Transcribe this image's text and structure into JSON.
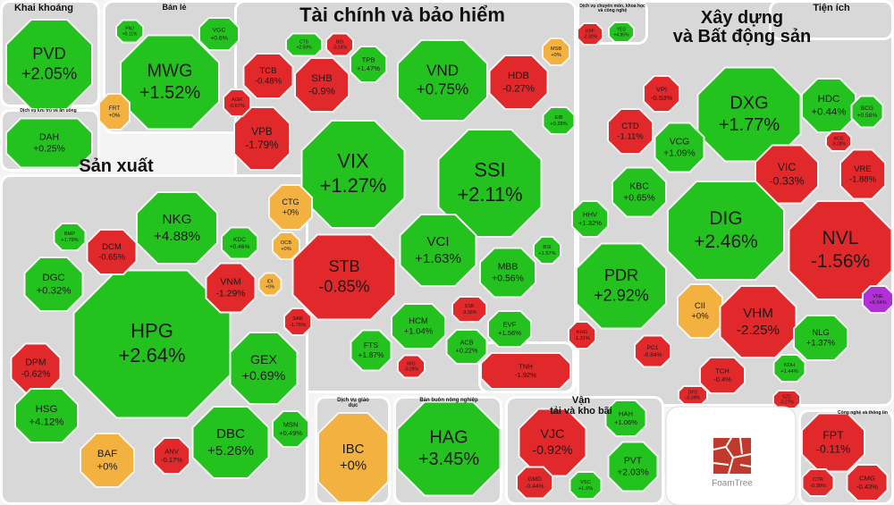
{
  "chart_data": {
    "type": "treemap",
    "groups": [
      {
        "name": "Khai khoáng",
        "categories": [
          "PVD"
        ],
        "values": [
          2.05
        ],
        "value_labels": [
          "+2.05%"
        ]
      },
      {
        "name": "Bán lẻ",
        "categories": [
          "MWG",
          "VGC",
          "FRT",
          "PNJ"
        ],
        "values": [
          1.52,
          0.6,
          0,
          0.11
        ],
        "value_labels": [
          "+1.52%",
          "+0.6%",
          "+0%",
          "+0.11%"
        ]
      },
      {
        "name": "Dịch vụ lưu trú và ăn uống",
        "categories": [
          "DAH"
        ],
        "values": [
          0.25
        ],
        "value_labels": [
          "+0.25%"
        ]
      },
      {
        "name": "Xây dựng\nvà Bất động sản",
        "categories": [
          "VPI",
          "DXG",
          "HDC",
          "BCG",
          "CTD",
          "VCG",
          "ACG",
          "VIC",
          "VRE",
          "KBC",
          "HHV",
          "DIG",
          "NVL",
          "PDR",
          "CII",
          "VHM",
          "NLG",
          "VNE",
          "KHG",
          "PC1",
          "TCH",
          "KDH",
          "DPG",
          "SZC"
        ],
        "values": [
          -0.53,
          1.77,
          0.44,
          0.58,
          -1.11,
          1.09,
          -3.28,
          -0.33,
          -1.88,
          0.65,
          1.32,
          2.46,
          -1.56,
          2.92,
          0,
          -2.25,
          1.37,
          6.94,
          -1.31,
          -0.84,
          -0.4,
          1.44,
          -0.39,
          -0.27
        ],
        "value_labels": [
          "-0.53%",
          "+1.77%",
          "+0.44%",
          "+0.58%",
          "-1.11%",
          "+1.09%",
          "-3.28%",
          "-0.33%",
          "-1.88%",
          "+0.65%",
          "+1.32%",
          "+2.46%",
          "-1.56%",
          "+2.92%",
          "+0%",
          "-2.25%",
          "+1.37%",
          "+6.94%",
          "-1.31%",
          "-0.84%",
          "-0.4%",
          "+1.44%",
          "-0.39%",
          "-0.27%"
        ]
      },
      {
        "name": "Dịch vụ chuyên môn, khoa học và công nghệ",
        "categories": [
          "KPF",
          "YEG"
        ],
        "values": [
          -2.32,
          4.85
        ],
        "value_labels": [
          "-2.32%",
          "+4.85%"
        ]
      },
      {
        "name": "Tiện ích",
        "categories": [],
        "values": [],
        "value_labels": []
      },
      {
        "name": "Tài chính và bảo hiểm",
        "categories": [
          "TCB",
          "SHB",
          "CTS",
          "BID",
          "TPB",
          "VND",
          "HDB",
          "MSB",
          "VPB",
          "AGR",
          "VIX",
          "SSI",
          "EIB",
          "CTG",
          "OCB",
          "STB",
          "VCI",
          "BSI",
          "MBB",
          "SSB",
          "HCM",
          "EVF",
          "ACB",
          "FTS",
          "MIG"
        ],
        "values": [
          -0.48,
          -0.9,
          2.59,
          -0.24,
          1.47,
          0.75,
          -0.27,
          0,
          -1.79,
          -0.67,
          1.27,
          2.11,
          0.28,
          0,
          0,
          -0.85,
          1.63,
          1.57,
          0.56,
          -3.36,
          1.04,
          1.56,
          0.22,
          1.87,
          -0.28
        ],
        "value_labels": [
          "-0.48%",
          "-0.9%",
          "+2.59%",
          "-0.24%",
          "+1.47%",
          "+0.75%",
          "-0.27%",
          "+0%",
          "-1.79%",
          "-0.67%",
          "+1.27%",
          "+2.11%",
          "+0.28%",
          "+0%",
          "+0%",
          "-0.85%",
          "+1.63%",
          "+1.57%",
          "+0.56%",
          "-3.36%",
          "+1.04%",
          "+1.56%",
          "+0.22%",
          "+1.87%",
          "-0.28%"
        ]
      },
      {
        "name": "Sản xuất",
        "categories": [
          "HPG",
          "NKG",
          "DCM",
          "DGC",
          "BMP",
          "KDC",
          "VNM",
          "IDI",
          "SAB",
          "GEX",
          "DPM",
          "HSG",
          "BAF",
          "ANV",
          "DBC",
          "MSN"
        ],
        "values": [
          2.64,
          4.88,
          -0.65,
          0.32,
          1.79,
          0.46,
          -1.29,
          0,
          -1.76,
          0.69,
          -0.62,
          4.12,
          0,
          -0.17,
          5.26,
          0.49
        ],
        "value_labels": [
          "+2.64%",
          "+4.88%",
          "-0.65%",
          "+0.32%",
          "+1.79%",
          "+0.46%",
          "-1.29%",
          "+0%",
          "-1.76%",
          "+0.69%",
          "-0.62%",
          "+4.12%",
          "+0%",
          "-0.17%",
          "+5.26%",
          "+0.49%"
        ]
      },
      {
        "name": "Dịch vụ giáo dục",
        "categories": [
          "IBC"
        ],
        "values": [
          0
        ],
        "value_labels": [
          "+0%"
        ]
      },
      {
        "name": "Bán buôn nông nghiệp",
        "categories": [
          "HAG"
        ],
        "values": [
          3.45
        ],
        "value_labels": [
          "+3.45%"
        ]
      },
      {
        "name": "Vận\ntải và kho bãi",
        "categories": [
          "VJC",
          "HAH",
          "PVT",
          "GMD",
          "VSC"
        ],
        "values": [
          -0.92,
          1.06,
          2.03,
          -0.44,
          1.5
        ],
        "value_labels": [
          "-0.92%",
          "+1.06%",
          "+2.03%",
          "-0.44%",
          "+1.5%"
        ]
      },
      {
        "name": "Công nghệ và thông tin",
        "categories": [
          "FPT",
          "CMG",
          "CTR"
        ],
        "values": [
          -0.11,
          -0.43,
          -0.38
        ],
        "value_labels": [
          "-0.11%",
          "-0.43%",
          "-0.38%"
        ]
      },
      {
        "categories": [
          "TNH"
        ],
        "values": [
          -1.92
        ],
        "value_labels": [
          "-1.92%"
        ]
      }
    ]
  },
  "watermark": "FoamTree"
}
